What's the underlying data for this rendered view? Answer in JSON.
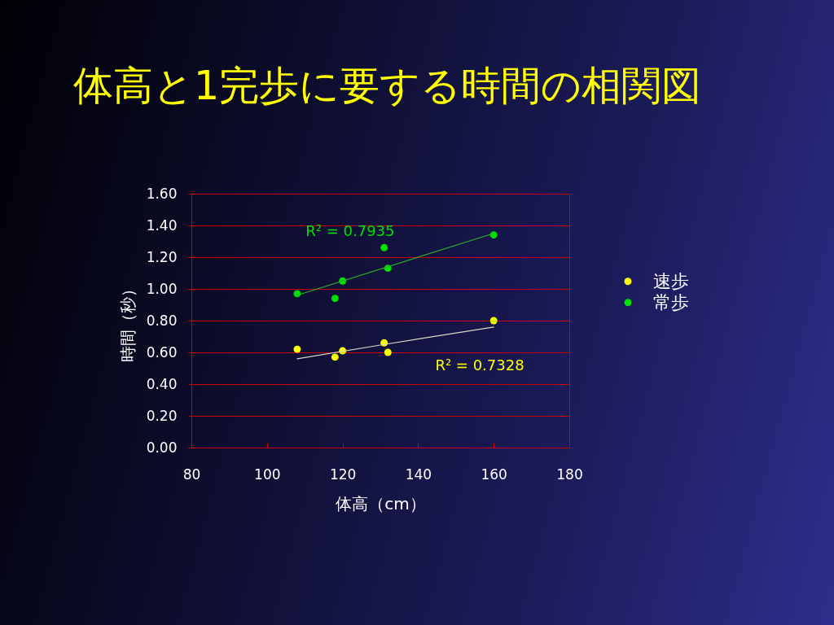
{
  "chart_data": {
    "type": "scatter",
    "title": "体高と1完歩に要する時間の相関図",
    "xlabel": "体高（cm）",
    "ylabel": "時間（秒）",
    "series": [
      {
        "name": "速歩",
        "color": "#ffff00",
        "x": [
          108,
          118,
          120,
          131,
          132,
          160
        ],
        "values": [
          0.62,
          0.57,
          0.61,
          0.66,
          0.6,
          0.8
        ]
      },
      {
        "name": "常歩",
        "color": "#00e000",
        "x": [
          108,
          118,
          120,
          131,
          132,
          160
        ],
        "values": [
          0.97,
          0.94,
          1.05,
          1.26,
          1.13,
          1.34
        ]
      },
      {
        "type": "line",
        "color": "#d8d8c8",
        "marker": "none",
        "x": [
          108,
          131,
          160
        ],
        "values": [
          0.56,
          0.65,
          0.76
        ]
      },
      {
        "type": "line",
        "color": "#30b030",
        "marker": "none",
        "x": [
          108,
          160
        ],
        "values": [
          0.96,
          1.35
        ]
      }
    ],
    "annotations": [
      "R² = 0.7328",
      "R² = 0.7935"
    ],
    "xlim": [
      80,
      180
    ],
    "xticks": [
      80,
      100,
      120,
      140,
      160,
      180
    ],
    "ylim": [
      0,
      1.6
    ],
    "yticks": [
      {
        "value": 0,
        "label": "0.00"
      },
      {
        "value": 0.2,
        "label": "0.20"
      },
      {
        "value": 0.4,
        "label": "0.40"
      },
      {
        "value": 0.6,
        "label": "0.60"
      },
      {
        "value": 0.8,
        "label": "0.80"
      },
      {
        "value": 1.0,
        "label": "1.00"
      },
      {
        "value": 1.2,
        "label": "1.20"
      },
      {
        "value": 1.4,
        "label": "1.40"
      },
      {
        "value": 1.6,
        "label": "1.60"
      }
    ],
    "grid": "y",
    "legend": "right",
    "marker": "circle"
  }
}
